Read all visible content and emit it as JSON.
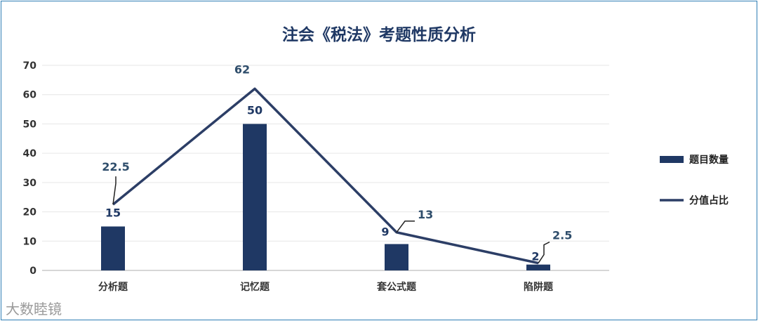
{
  "chart_data": {
    "type": "bar",
    "title": "注会《税法》考题性质分析",
    "categories": [
      "分析题",
      "记忆题",
      "套公式题",
      "陷阱题"
    ],
    "series": [
      {
        "name": "题目数量",
        "type": "bar",
        "values": [
          15,
          50,
          9,
          2
        ],
        "color": "#1f3864"
      },
      {
        "name": "分值占比",
        "type": "line",
        "values": [
          22.5,
          62,
          13,
          2.5
        ],
        "color": "#2c3e66"
      }
    ],
    "ylim": [
      0,
      70
    ],
    "yticks": [
      0,
      10,
      20,
      30,
      40,
      50,
      60,
      70
    ],
    "grid": true,
    "legend": "right"
  },
  "watermark": "大数睦镜"
}
